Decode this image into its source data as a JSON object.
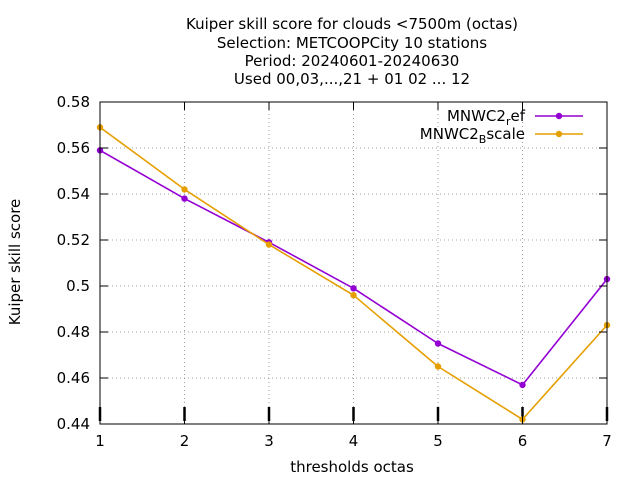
{
  "chart_data": {
    "type": "line",
    "title_lines": [
      "Kuiper skill score  for clouds <7500m (octas)",
      "Selection: METCOOPCity      10 stations",
      "Period: 20240601-20240630",
      "Used 00,03,...,21 + 01 02 ... 12"
    ],
    "xlabel": "thresholds octas",
    "ylabel": "Kuiper skill score",
    "x": [
      1,
      2,
      3,
      4,
      5,
      6,
      7
    ],
    "x_ticks": [
      "1",
      "2",
      "3",
      "4",
      "5",
      "6",
      "7"
    ],
    "y_ticks": [
      "0.58",
      "0.56",
      "0.54",
      "0.52",
      "0.5",
      "0.48",
      "0.46",
      "0.44"
    ],
    "ylim": [
      0.44,
      0.58
    ],
    "xlim": [
      1,
      7
    ],
    "grid": true,
    "legend_position": "top-right",
    "series": [
      {
        "name_main": "MNWC2",
        "name_sub": "r",
        "name_tail": "ef",
        "color": "#9400d3",
        "values": [
          0.559,
          0.538,
          0.519,
          0.499,
          0.475,
          0.457,
          0.503
        ]
      },
      {
        "name_main": "MNWC2",
        "name_sub": "B",
        "name_tail": "scale",
        "color": "#e69f00",
        "values": [
          0.569,
          0.542,
          0.518,
          0.496,
          0.465,
          0.442,
          0.483
        ]
      }
    ]
  }
}
